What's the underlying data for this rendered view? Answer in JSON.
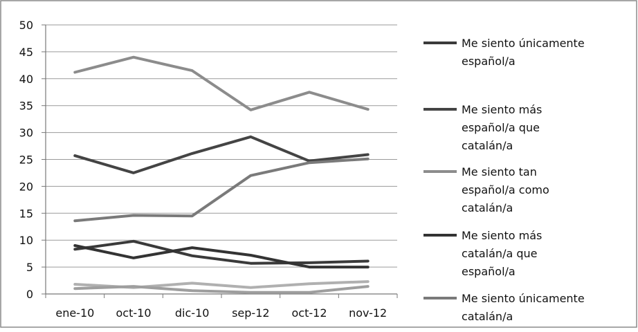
{
  "chart_data": {
    "type": "line",
    "title": "",
    "xlabel": "",
    "ylabel": "",
    "categories": [
      "ene-10",
      "oct-10",
      "dic-10",
      "sep-12",
      "oct-12",
      "nov-12"
    ],
    "ylim": [
      0,
      50
    ],
    "yticks": [
      0,
      5,
      10,
      15,
      20,
      25,
      30,
      35,
      40,
      45,
      50
    ],
    "grid": true,
    "legend_position": "right",
    "series": [
      {
        "name": "Me siento únicamente español/a",
        "legend_lines": [
          "Me siento únicamente",
          "español/a"
        ],
        "color": "#3a3a3a",
        "values": [
          8.3,
          9.8,
          7.1,
          5.7,
          5.8,
          6.1
        ]
      },
      {
        "name": "Me siento más español/a que catalán/a",
        "legend_lines": [
          "Me siento más",
          "español/a que",
          "catalán/a"
        ],
        "color": "#444444",
        "values": [
          25.7,
          22.5,
          26.1,
          29.2,
          24.7,
          25.9
        ]
      },
      {
        "name": "Me siento tan español/a como catalán/a",
        "legend_lines": [
          "Me siento tan",
          "español/a como",
          "catalán/a"
        ],
        "color": "#8c8c8c",
        "values": [
          41.2,
          44.0,
          41.5,
          34.2,
          37.5,
          34.3
        ]
      },
      {
        "name": "Me siento más catalán/a que español/a",
        "legend_lines": [
          "Me siento más",
          "catalán/a que",
          "español/a"
        ],
        "color": "#333333",
        "values": [
          9.0,
          6.7,
          8.6,
          7.2,
          5.0,
          5.0
        ]
      },
      {
        "name": "Me siento únicamente catalán/a",
        "legend_lines": [
          "Me siento únicamente",
          "catalán/a"
        ],
        "color": "#7a7a7a",
        "values": [
          13.6,
          14.6,
          14.5,
          22.0,
          24.4,
          25.1
        ]
      },
      {
        "name": "",
        "legend_lines": [],
        "color": "#b0b0b0",
        "values": [
          1.8,
          1.2,
          2.0,
          1.2,
          1.9,
          2.3
        ]
      },
      {
        "name": "",
        "legend_lines": [],
        "color": "#9e9e9e",
        "values": [
          1.0,
          1.4,
          0.6,
          0.3,
          0.3,
          1.4
        ]
      }
    ]
  }
}
